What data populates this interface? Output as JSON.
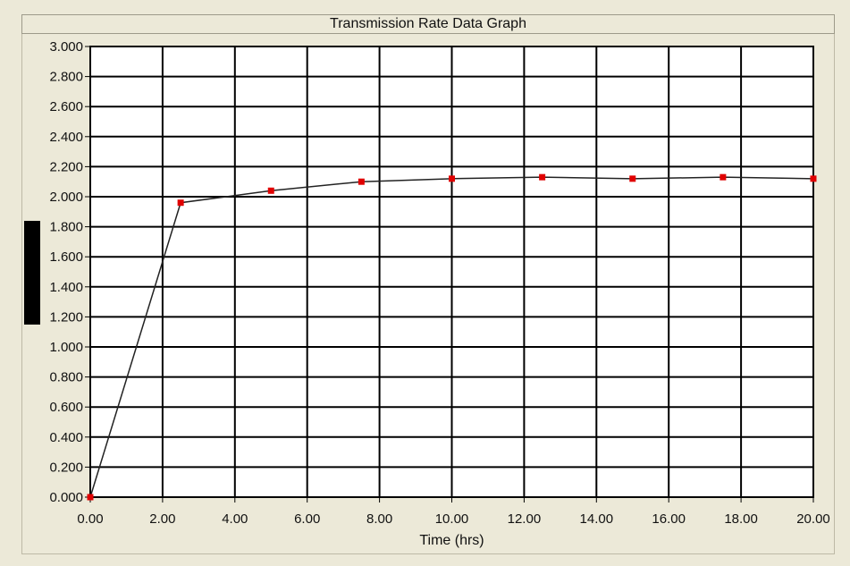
{
  "chart_data": {
    "type": "line",
    "title": "Transmission Rate Data Graph",
    "xlabel": "Time (hrs)",
    "ylabel": "",
    "xlim": [
      0,
      20
    ],
    "ylim": [
      0,
      3
    ],
    "grid": true,
    "x_ticks": [
      "0.00",
      "2.00",
      "4.00",
      "6.00",
      "8.00",
      "10.00",
      "12.00",
      "14.00",
      "16.00",
      "18.00",
      "20.00"
    ],
    "y_ticks": [
      "0.000",
      "0.200",
      "0.400",
      "0.600",
      "0.800",
      "1.000",
      "1.200",
      "1.400",
      "1.600",
      "1.800",
      "2.000",
      "2.200",
      "2.400",
      "2.600",
      "2.800",
      "3.000"
    ],
    "series": [
      {
        "x": [
          0,
          2.5,
          5,
          7.5,
          10,
          12.5,
          15,
          17.5,
          20
        ],
        "y": [
          0.0,
          1.96,
          2.04,
          2.1,
          2.12,
          2.13,
          2.12,
          2.13,
          2.12
        ],
        "line_color": "#222222",
        "marker_color": "#e00000"
      }
    ]
  }
}
